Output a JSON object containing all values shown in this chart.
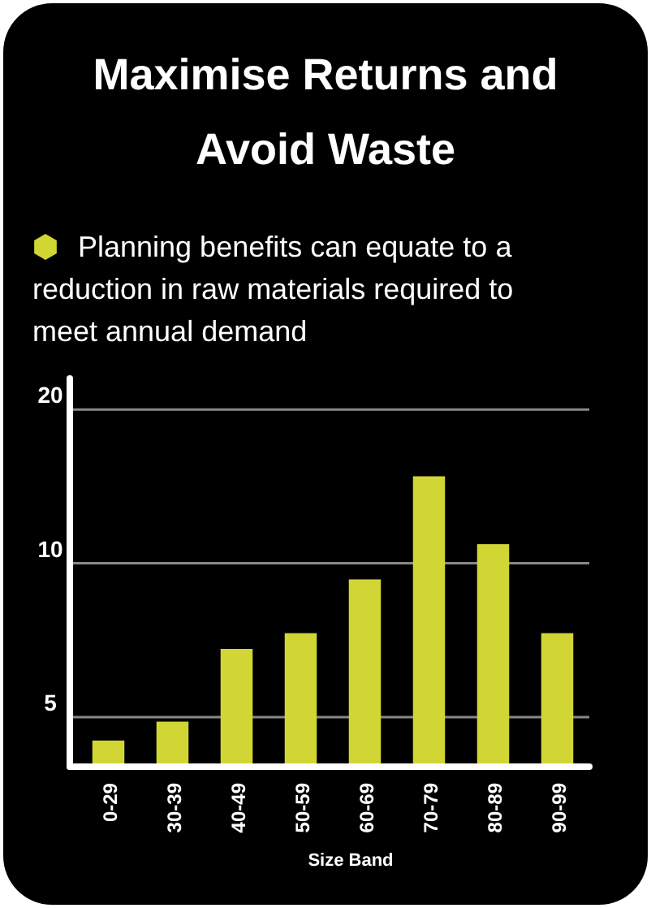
{
  "chart_data": {
    "type": "bar",
    "title": "Maximise Returns and Avoid Waste",
    "subtitle": "Planning benefits can equate to a reduction in raw materials required to meet annual demand",
    "xlabel": "Size Band",
    "categories": [
      "0-29",
      "30-39",
      "40-49",
      "50-59",
      "60-69",
      "70-79",
      "80-89",
      "90-99"
    ],
    "values": [
      4.5,
      4.9,
      6.8,
      7.3,
      9.3,
      14.8,
      10.9,
      7.3
    ],
    "color": "#d2d634",
    "log": "y",
    "ylim": [
      4,
      23
    ],
    "yticks": [
      5,
      10,
      20
    ],
    "grid": "y"
  }
}
